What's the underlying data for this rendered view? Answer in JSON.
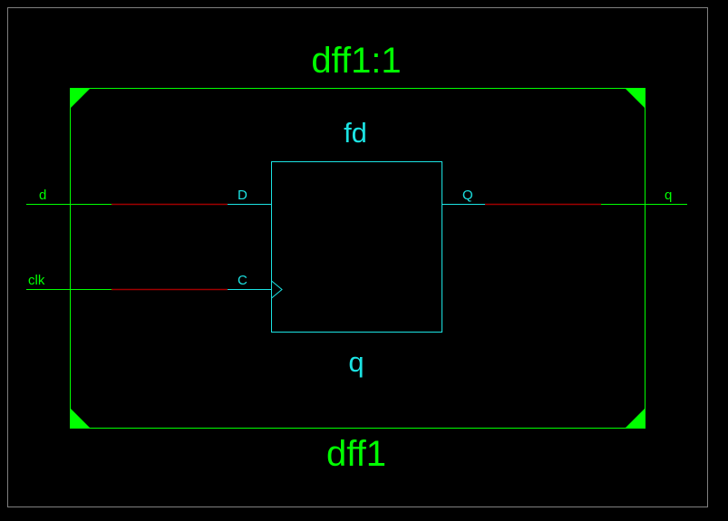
{
  "schematic": {
    "instance_label": "dff1:1",
    "module_label": "dff1",
    "cell_type": "fd",
    "cell_instance": "q",
    "input_ports": {
      "d": "d",
      "clk": "clk"
    },
    "output_ports": {
      "q": "q"
    },
    "cell_pins": {
      "D": "D",
      "C": "C",
      "Q": "Q"
    }
  },
  "colors": {
    "background": "#000000",
    "module": "#00ff00",
    "cell": "#1ce3e3",
    "net_highlight": "#a00000",
    "frame": "#7f7f7f"
  }
}
